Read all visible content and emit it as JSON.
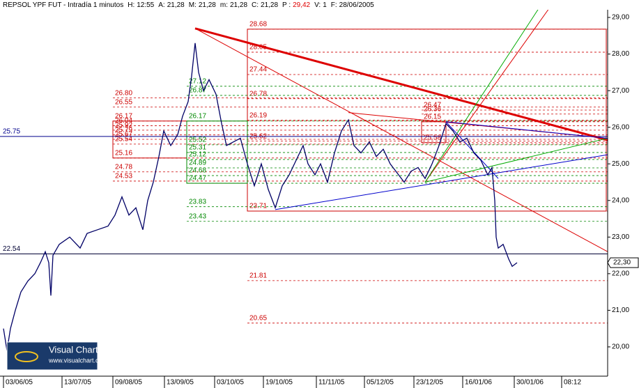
{
  "chart_data": {
    "type": "line",
    "header": {
      "symbol": "REPSOL YPF FUT - Intradía 1 minutos",
      "fields": [
        {
          "label": "H:",
          "value": "12:55",
          "color": "#000"
        },
        {
          "label": "A:",
          "value": "21,28",
          "color": "#000"
        },
        {
          "label": "M:",
          "value": "21,28",
          "color": "#000"
        },
        {
          "label": "m:",
          "value": "21,28",
          "color": "#000"
        },
        {
          "label": "C:",
          "value": "21,28",
          "color": "#000"
        },
        {
          "label": "P :",
          "value": "29,42",
          "color": "#e00000"
        },
        {
          "label": "V:",
          "value": "1",
          "color": "#000"
        },
        {
          "label": "F:",
          "value": "28/06/2005",
          "color": "#000"
        }
      ]
    },
    "logo": {
      "title": "Visual Chart",
      "url": "www.visualchart.com"
    },
    "xlim": [
      0,
      872
    ],
    "ylim": [
      19.2,
      29.21
    ],
    "xticks": [
      {
        "value": 5,
        "label": "03/06/05"
      },
      {
        "value": 89,
        "label": "13/07/05"
      },
      {
        "value": 162,
        "label": "09/08/05"
      },
      {
        "value": 236,
        "label": "13/09/05"
      },
      {
        "value": 308,
        "label": "03/10/05"
      },
      {
        "value": 378,
        "label": "19/10/05"
      },
      {
        "value": 454,
        "label": "11/11/05"
      },
      {
        "value": 523,
        "label": "05/12/05"
      },
      {
        "value": 594,
        "label": "23/12/05"
      },
      {
        "value": 664,
        "label": "16/01/06"
      },
      {
        "value": 738,
        "label": "30/01/06"
      },
      {
        "value": 806,
        "label": "08:12"
      }
    ],
    "yticks": [
      {
        "value": 20,
        "label": "20,00"
      },
      {
        "value": 21,
        "label": "21,00"
      },
      {
        "value": 22,
        "label": "22,00"
      },
      {
        "value": 23,
        "label": "23,00"
      },
      {
        "value": 24,
        "label": "24,00"
      },
      {
        "value": 25,
        "label": "25,00"
      },
      {
        "value": 26,
        "label": "26,00"
      },
      {
        "value": 27,
        "label": "27,00"
      },
      {
        "value": 28,
        "label": "28,00"
      },
      {
        "value": 29,
        "label": "29,00"
      }
    ],
    "series": [
      {
        "color": "#000066",
        "x": [
          5,
          10,
          15,
          22,
          30,
          40,
          50,
          58,
          65,
          70,
          73,
          76,
          85,
          100,
          115,
          125,
          140,
          155,
          165,
          175,
          185,
          195,
          205,
          212,
          220,
          228,
          235,
          245,
          255,
          262,
          270,
          275,
          280,
          285,
          292,
          300,
          310,
          318,
          325,
          335,
          345,
          355,
          365,
          375,
          385,
          395,
          405,
          415,
          425,
          435,
          442,
          452,
          460,
          470,
          480,
          490,
          500,
          508,
          518,
          530,
          540,
          550,
          560,
          572,
          580,
          590,
          600,
          610,
          620,
          630,
          640,
          650,
          660,
          670,
          680,
          690,
          700,
          706,
          710,
          712,
          715,
          722,
          730,
          735,
          742
        ],
        "values": [
          20.5,
          19.9,
          20.5,
          21.0,
          21.5,
          21.8,
          22.0,
          22.3,
          22.6,
          22.3,
          21.4,
          22.5,
          22.8,
          23.0,
          22.7,
          23.1,
          23.2,
          23.3,
          23.6,
          24.1,
          23.6,
          23.8,
          23.2,
          24.0,
          24.5,
          25.2,
          25.9,
          25.5,
          25.8,
          26.3,
          26.7,
          27.4,
          28.3,
          27.5,
          27.0,
          27.3,
          26.9,
          26.1,
          25.5,
          25.6,
          25.7,
          25.0,
          24.4,
          25.0,
          24.3,
          23.8,
          24.4,
          24.7,
          25.1,
          25.5,
          25.0,
          24.7,
          25.0,
          24.5,
          25.3,
          25.9,
          26.2,
          25.5,
          25.3,
          25.6,
          25.2,
          25.4,
          25.0,
          24.7,
          24.5,
          24.8,
          24.9,
          24.6,
          25.0,
          25.5,
          26.1,
          25.9,
          25.6,
          25.7,
          25.3,
          25.1,
          24.7,
          24.9,
          24.0,
          23.0,
          22.7,
          22.8,
          22.4,
          22.2,
          22.3
        ]
      }
    ],
    "last_price": {
      "value": 22.3,
      "label": "22,30"
    },
    "hlines": [
      {
        "value": 25.75,
        "color": "#00008b"
      },
      {
        "value": 22.54,
        "color": "#000033"
      }
    ],
    "level_groups": [
      {
        "color": "#cc0000",
        "x": [
          355,
          870
        ],
        "box_levels": [
          {
            "value": 28.68,
            "label": "28.68"
          },
          {
            "value": 28.05,
            "label": "28.05"
          },
          {
            "value": 27.44,
            "label": "27.44"
          },
          {
            "value": 26.78,
            "label": "26.78"
          },
          {
            "value": 26.19,
            "label": "26.19"
          },
          {
            "value": 25.62,
            "label": "25.62"
          },
          {
            "value": 23.71,
            "label": "23.71"
          }
        ],
        "levels": [
          {
            "value": 21.81,
            "label": "21.81"
          },
          {
            "value": 20.65,
            "label": "20.65"
          }
        ]
      },
      {
        "color": "#cc0000",
        "x": [
          162,
          268
        ],
        "box_levels": [
          {
            "value": 26.17,
            "label": "26.17"
          },
          {
            "value": 26.04,
            "label": "26.04"
          },
          {
            "value": 25.92,
            "label": "25.92"
          },
          {
            "value": 25.79,
            "label": "25.79"
          },
          {
            "value": 25.67,
            "label": "25.67"
          },
          {
            "value": 25.54,
            "label": "25.54"
          },
          {
            "value": 25.16,
            "label": "25.16"
          }
        ],
        "levels": [
          {
            "value": 26.8,
            "label": "26.80"
          },
          {
            "value": 26.55,
            "label": "26.55"
          },
          {
            "value": 24.78,
            "label": "24.78"
          },
          {
            "value": 24.53,
            "label": "24.53"
          }
        ]
      },
      {
        "color": "#008800",
        "x": [
          268,
          355
        ],
        "box_levels": [
          {
            "value": 26.17,
            "label": "26.17"
          },
          {
            "value": 25.52,
            "label": "25.52"
          },
          {
            "value": 25.31,
            "label": "25.31"
          },
          {
            "value": 25.12,
            "label": "25.12"
          },
          {
            "value": 24.89,
            "label": "24.89"
          },
          {
            "value": 24.68,
            "label": "24.68"
          },
          {
            "value": 24.47,
            "label": "24.47"
          }
        ],
        "levels": [
          {
            "value": 27.12,
            "label": "27.12"
          },
          {
            "value": 26.87,
            "label": "26.87"
          },
          {
            "value": 23.83,
            "label": "23.83"
          },
          {
            "value": 23.43,
            "label": "23.43"
          }
        ]
      },
      {
        "color": "#cc0000",
        "x": [
          605,
          640
        ],
        "box_levels": [
          {
            "value": 26.15,
            "label": "26.15"
          },
          {
            "value": 25.58,
            "label": "25.58"
          }
        ],
        "levels": [
          {
            "value": 26.47,
            "label": "26.47"
          },
          {
            "value": 26.36,
            "label": "26.36"
          }
        ]
      }
    ],
    "trendlines": [
      {
        "color": "#dd0000",
        "width": 3,
        "x": [
          280,
          872
        ],
        "values": [
          28.7,
          25.65
        ]
      },
      {
        "color": "#dd0000",
        "width": 1,
        "x": [
          280,
          872
        ],
        "values": [
          28.7,
          22.6
        ]
      },
      {
        "color": "#dd0000",
        "width": 1,
        "x": [
          500,
          872
        ],
        "values": [
          26.4,
          25.7
        ]
      },
      {
        "color": "#dd0000",
        "width": 1,
        "x": [
          610,
          790
        ],
        "values": [
          24.5,
          29.3
        ]
      },
      {
        "color": "#00aa00",
        "width": 1,
        "x": [
          610,
          775
        ],
        "values": [
          24.5,
          29.3
        ]
      },
      {
        "color": "#00aa00",
        "width": 1,
        "x": [
          610,
          872
        ],
        "values": [
          24.5,
          25.7
        ]
      },
      {
        "color": "#0000cc",
        "width": 1,
        "x": [
          395,
          872
        ],
        "values": [
          23.75,
          25.25
        ]
      },
      {
        "color": "#0000cc",
        "width": 1,
        "x": [
          640,
          715
        ],
        "values": [
          26.15,
          24.6
        ]
      },
      {
        "color": "#0000cc",
        "width": 1,
        "x": [
          640,
          872
        ],
        "values": [
          26.15,
          25.7
        ]
      }
    ]
  }
}
